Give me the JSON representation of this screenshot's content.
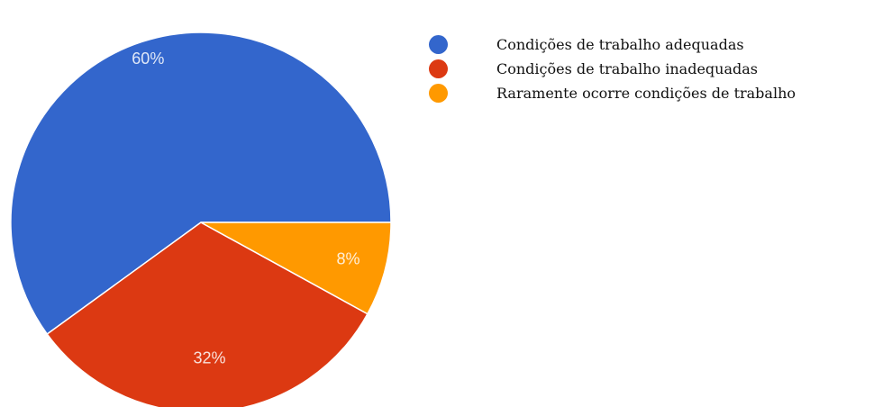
{
  "chart_data": {
    "type": "pie",
    "title": "",
    "slices": [
      {
        "label": "Condições de trabalho adequadas",
        "value": 60,
        "value_label": "60%",
        "color": "#3366cc"
      },
      {
        "label": "Condições de trabalho inadequadas",
        "value": 32,
        "value_label": "32%",
        "color": "#dc3912"
      },
      {
        "label": "Raramente ocorre condições de trabalho",
        "value": 8,
        "value_label": "8%",
        "color": "#ff9900"
      }
    ],
    "start_angle": "3 o'clock, counter-clockwise",
    "legend_position": "right"
  }
}
